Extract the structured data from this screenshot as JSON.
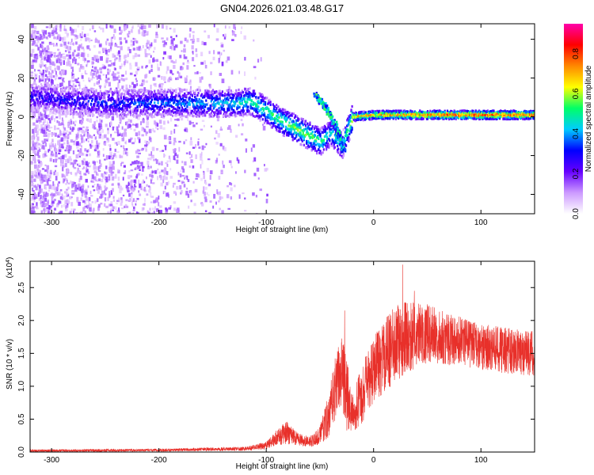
{
  "title": "GN04.2026.021.03.48.G17",
  "chart_data": [
    {
      "type": "heatmap",
      "xlabel": "Height of straight line (km)",
      "ylabel": "Frequency (Hz)",
      "xlim": [
        -320,
        150
      ],
      "ylim": [
        -50,
        48
      ],
      "xticks": [
        -300,
        -200,
        -100,
        0,
        100
      ],
      "yticks": [
        -40,
        -20,
        0,
        20,
        40
      ],
      "colorbar": {
        "label": "Normalized spectral amplitude",
        "range": [
          0.0,
          0.95
        ],
        "ticks": [
          0.0,
          0.2,
          0.4,
          0.6,
          0.8
        ],
        "colors": [
          "#ffffff",
          "#cc99ff",
          "#6600ff",
          "#0000ff",
          "#00ccff",
          "#00ff66",
          "#ffff00",
          "#ff8800",
          "#ff0000",
          "#ff00aa"
        ]
      },
      "ridge": [
        {
          "x": -310,
          "y": 10,
          "amp": 0.3
        },
        {
          "x": -280,
          "y": 8,
          "amp": 0.32
        },
        {
          "x": -250,
          "y": 7,
          "amp": 0.35
        },
        {
          "x": -220,
          "y": 7,
          "amp": 0.36
        },
        {
          "x": -190,
          "y": 7,
          "amp": 0.4
        },
        {
          "x": -160,
          "y": 7,
          "amp": 0.44
        },
        {
          "x": -130,
          "y": 7,
          "amp": 0.48
        },
        {
          "x": -115,
          "y": 8,
          "amp": 0.55
        },
        {
          "x": -100,
          "y": 3,
          "amp": 0.55
        },
        {
          "x": -90,
          "y": -1,
          "amp": 0.58
        },
        {
          "x": -80,
          "y": -4,
          "amp": 0.6
        },
        {
          "x": -70,
          "y": -7,
          "amp": 0.62
        },
        {
          "x": -60,
          "y": -10,
          "amp": 0.62
        },
        {
          "x": -50,
          "y": -13,
          "amp": 0.58
        },
        {
          "x": -40,
          "y": -8,
          "amp": 0.5
        },
        {
          "x": -30,
          "y": -15,
          "amp": 0.45
        },
        {
          "x": -20,
          "y": 0,
          "amp": 0.72
        },
        {
          "x": 0,
          "y": 1,
          "amp": 0.78
        },
        {
          "x": 30,
          "y": 1,
          "amp": 0.82
        },
        {
          "x": 60,
          "y": 1,
          "amp": 0.86
        },
        {
          "x": 90,
          "y": 1,
          "amp": 0.88
        },
        {
          "x": 120,
          "y": 1,
          "amp": 0.86
        },
        {
          "x": 150,
          "y": 1,
          "amp": 0.84
        }
      ],
      "branch": [
        {
          "x": -55,
          "y": 12
        },
        {
          "x": -45,
          "y": 5
        },
        {
          "x": -35,
          "y": -5
        },
        {
          "x": -28,
          "y": -18
        }
      ]
    },
    {
      "type": "line",
      "xlabel": "Height of straight line (km)",
      "ylabel": "SNR (10 * v/v)",
      "y_multiplier": "(x10",
      "y_multiplier_exp": "4",
      "y_multiplier_close": ")",
      "xlim": [
        -320,
        150
      ],
      "ylim": [
        0,
        2.9
      ],
      "xticks": [
        -300,
        -200,
        -100,
        0,
        100
      ],
      "yticks": [
        0.0,
        0.5,
        1.0,
        1.5,
        2.0,
        2.5
      ],
      "yticklabels": [
        "0.0",
        "0.5",
        "1.0",
        "1.5",
        "2.0",
        "2.5"
      ],
      "color": "#e8302a",
      "envelope": {
        "x": [
          -320,
          -200,
          -120,
          -100,
          -90,
          -80,
          -70,
          -60,
          -50,
          -40,
          -35,
          -30,
          -25,
          -20,
          -10,
          0,
          10,
          20,
          30,
          50,
          70,
          100,
          120,
          150
        ],
        "mean": [
          0.02,
          0.03,
          0.05,
          0.1,
          0.22,
          0.3,
          0.2,
          0.15,
          0.25,
          0.65,
          1.0,
          1.25,
          0.9,
          0.55,
          0.9,
          1.25,
          1.45,
          1.65,
          1.75,
          1.8,
          1.72,
          1.6,
          1.55,
          1.5
        ],
        "spread": [
          0.02,
          0.02,
          0.03,
          0.06,
          0.12,
          0.18,
          0.1,
          0.08,
          0.14,
          0.4,
          0.5,
          0.55,
          0.6,
          0.3,
          0.45,
          0.5,
          0.55,
          0.6,
          0.55,
          0.45,
          0.4,
          0.35,
          0.35,
          0.35
        ]
      },
      "peaks": [
        {
          "x": -27,
          "y": 2.15
        },
        {
          "x": 27,
          "y": 2.85
        },
        {
          "x": 38,
          "y": 2.45
        }
      ]
    }
  ]
}
